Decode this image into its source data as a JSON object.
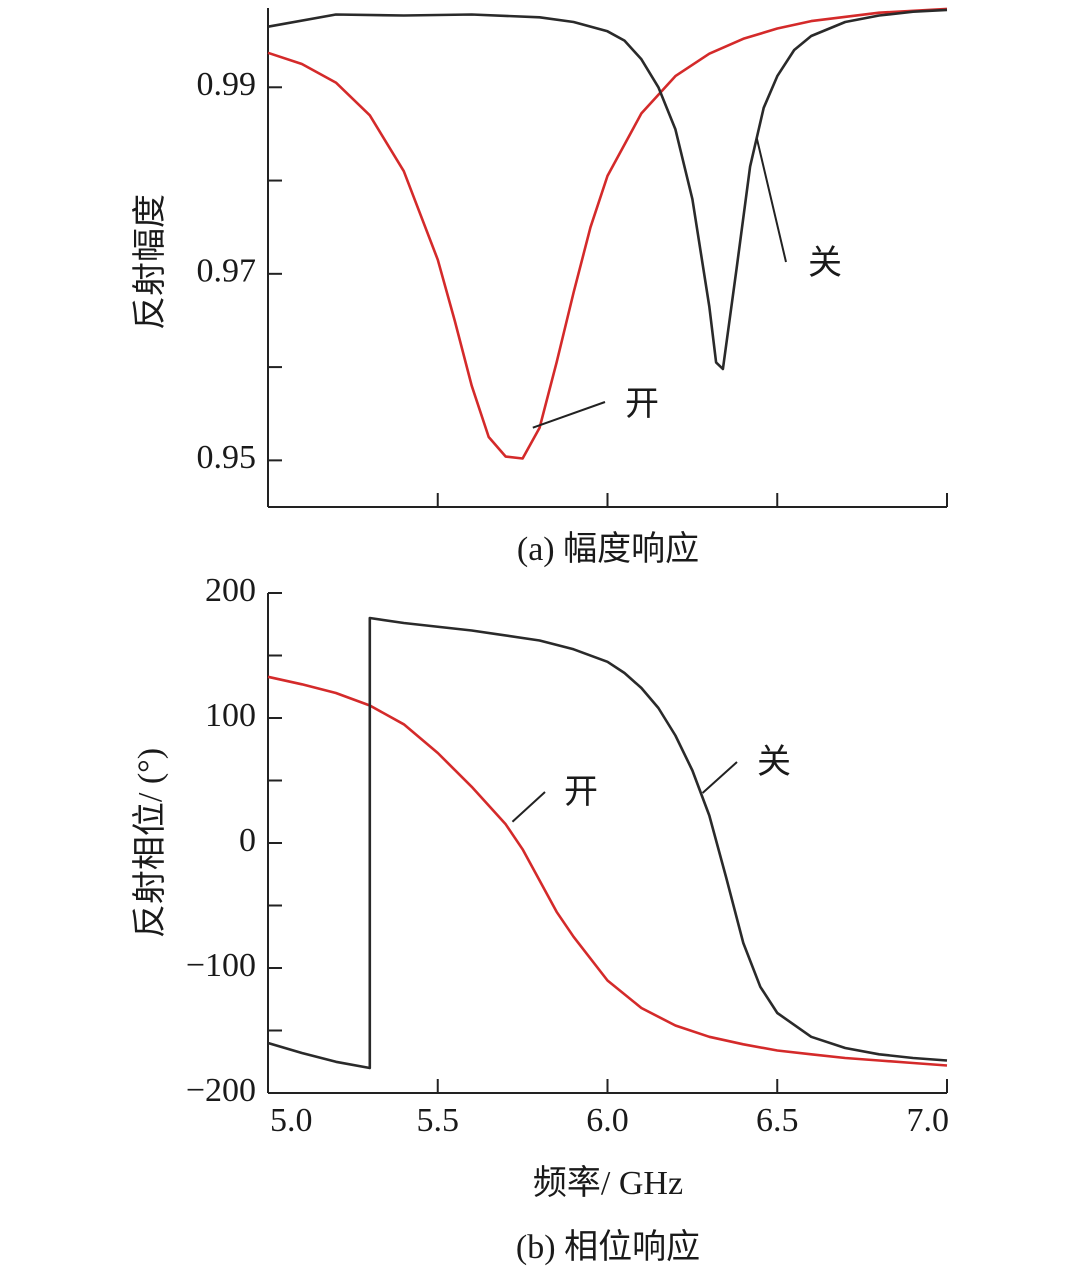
{
  "colors": {
    "on": "#d42a2a",
    "off": "#2a2a2a",
    "axis": "#222222"
  },
  "chart_data": [
    {
      "type": "line",
      "caption": "(a) 幅度响应",
      "ylabel": "反射幅度",
      "xlabel": "",
      "xlim": [
        5.0,
        7.0
      ],
      "ylim": [
        0.945,
        0.9985
      ],
      "x_ticks": [
        5.5,
        6.0,
        6.5,
        7.0
      ],
      "y_ticks": [
        0.95,
        0.96,
        0.97,
        0.98,
        0.99
      ],
      "y_tick_labels": [
        {
          "value": 0.99,
          "label": "0.99"
        },
        {
          "value": 0.97,
          "label": "0.97"
        },
        {
          "value": 0.95,
          "label": "0.95"
        }
      ],
      "grid": false,
      "series": [
        {
          "name": "开",
          "color": "#d42a2a",
          "x": [
            5.0,
            5.1,
            5.2,
            5.3,
            5.4,
            5.5,
            5.55,
            5.6,
            5.65,
            5.7,
            5.75,
            5.8,
            5.85,
            5.9,
            5.95,
            6.0,
            6.1,
            6.2,
            6.3,
            6.4,
            6.5,
            6.6,
            6.8,
            7.0
          ],
          "y": [
            0.9937,
            0.9925,
            0.9905,
            0.987,
            0.981,
            0.9715,
            0.965,
            0.958,
            0.9525,
            0.9504,
            0.9502,
            0.9535,
            0.9605,
            0.968,
            0.975,
            0.9805,
            0.9872,
            0.9912,
            0.9936,
            0.9952,
            0.9963,
            0.9971,
            0.998,
            0.9984
          ]
        },
        {
          "name": "关",
          "color": "#2a2a2a",
          "x": [
            5.0,
            5.2,
            5.4,
            5.6,
            5.8,
            5.9,
            6.0,
            6.05,
            6.1,
            6.15,
            6.2,
            6.25,
            6.3,
            6.32,
            6.34,
            6.38,
            6.42,
            6.46,
            6.5,
            6.55,
            6.6,
            6.7,
            6.8,
            6.9,
            7.0
          ],
          "y": [
            0.9965,
            0.9978,
            0.9977,
            0.9978,
            0.9975,
            0.997,
            0.996,
            0.995,
            0.993,
            0.99,
            0.9855,
            0.978,
            0.9665,
            0.9605,
            0.9598,
            0.9705,
            0.9815,
            0.9878,
            0.9912,
            0.994,
            0.9955,
            0.997,
            0.9977,
            0.9981,
            0.9983
          ]
        }
      ],
      "annotations": [
        {
          "text": "开",
          "series": "开"
        },
        {
          "text": "关",
          "series": "关"
        }
      ]
    },
    {
      "type": "line",
      "caption": "(b) 相位响应",
      "ylabel": "反射相位/ (°)",
      "xlabel": "频率/ GHz",
      "xlim": [
        5.0,
        7.0
      ],
      "ylim": [
        -200,
        200
      ],
      "x_ticks": [
        5.0,
        5.5,
        6.0,
        6.5,
        7.0
      ],
      "x_tick_labels": [
        "5.0",
        "5.5",
        "6.0",
        "6.5",
        "7.0"
      ],
      "y_ticks": [
        -200,
        -150,
        -100,
        -50,
        0,
        50,
        100,
        150,
        200
      ],
      "y_tick_labels": [
        {
          "value": 200,
          "label": "200"
        },
        {
          "value": 100,
          "label": "100"
        },
        {
          "value": 0,
          "label": "0"
        },
        {
          "value": -100,
          "label": "−100"
        },
        {
          "value": -200,
          "label": "−200"
        }
      ],
      "grid": false,
      "series": [
        {
          "name": "开",
          "color": "#d42a2a",
          "x": [
            5.0,
            5.1,
            5.2,
            5.3,
            5.4,
            5.5,
            5.6,
            5.7,
            5.75,
            5.8,
            5.85,
            5.9,
            6.0,
            6.1,
            6.2,
            6.3,
            6.4,
            6.5,
            6.6,
            6.7,
            6.8,
            6.9,
            7.0
          ],
          "y": [
            133,
            127,
            120,
            110,
            95,
            72,
            45,
            15,
            -5,
            -30,
            -55,
            -75,
            -110,
            -132,
            -146,
            -155,
            -161,
            -166,
            -169,
            -172,
            -174,
            -176,
            -178
          ]
        },
        {
          "name": "关",
          "color": "#2a2a2a",
          "x": [
            5.0,
            5.1,
            5.2,
            5.3,
            5.3,
            5.4,
            5.6,
            5.8,
            5.9,
            6.0,
            6.05,
            6.1,
            6.15,
            6.2,
            6.25,
            6.3,
            6.35,
            6.4,
            6.45,
            6.5,
            6.6,
            6.7,
            6.8,
            6.9,
            7.0
          ],
          "y": [
            -160,
            -168,
            -175,
            -180,
            180,
            176,
            170,
            162,
            155,
            145,
            136,
            124,
            108,
            86,
            58,
            22,
            -28,
            -80,
            -115,
            -136,
            -155,
            -164,
            -169,
            -172,
            -174
          ]
        }
      ],
      "annotations": [
        {
          "text": "开",
          "series": "开"
        },
        {
          "text": "关",
          "series": "关"
        }
      ]
    }
  ]
}
